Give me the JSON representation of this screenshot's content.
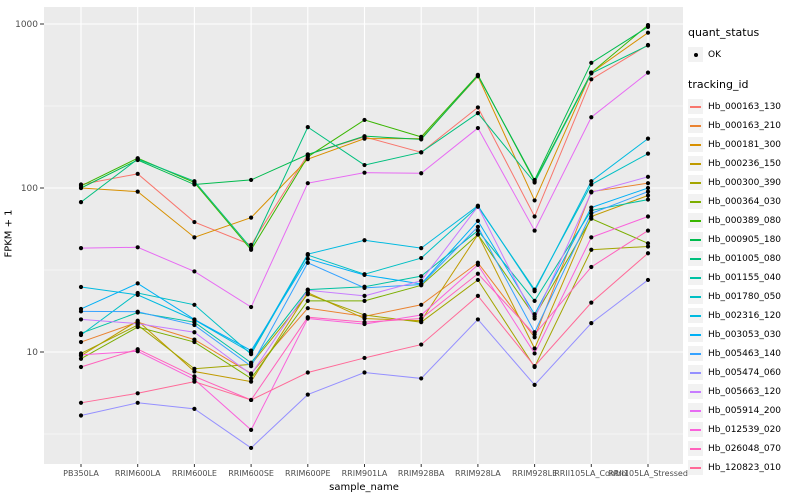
{
  "colors": {
    "panel_background": "#EBEBEB",
    "gridline": "#FFFFFF",
    "tick_mark": "#333333",
    "tick_label": "#4D4D4D",
    "point": "#000000",
    "legend_key_background": "#F2F2F2"
  },
  "legend": {
    "quant_status_title": "quant_status",
    "ok_label": "OK",
    "tracking_title": "tracking_id"
  },
  "chart_data": {
    "type": "line",
    "title": "",
    "xlabel": "sample_name",
    "ylabel": "FPKM + 1",
    "y_scale": "log10",
    "ylim": [
      2,
      1300
    ],
    "yticks": [
      10,
      100,
      1000
    ],
    "grid": true,
    "legend_position": "right",
    "point_marker": "black dot = quant_status OK",
    "x_categories": [
      "PB350LA",
      "RRIM600LA",
      "RRIM600LE",
      "RRIM600SE",
      "RRIM600PE",
      "RRIM901LA",
      "RRIM928BA",
      "RRIM928LA",
      "RRIM928LE",
      "RRII105LA_Control",
      "RRII105LA_Stressed"
    ],
    "series": [
      {
        "name": "Hb_000163_130",
        "color": "#F8766D",
        "values": [
          105,
          122,
          62,
          45,
          160,
          205,
          165,
          310,
          67,
          460,
          745
        ]
      },
      {
        "name": "Hb_000163_210",
        "color": "#EA8331",
        "values": [
          11.5,
          15.2,
          11.9,
          7.4,
          18.5,
          16.5,
          19.4,
          35,
          12.3,
          95,
          107
        ]
      },
      {
        "name": "Hb_000181_300",
        "color": "#D89000",
        "values": [
          100,
          95,
          50,
          66,
          150,
          200,
          200,
          480,
          84,
          505,
          885
        ]
      },
      {
        "name": "Hb_000236_150",
        "color": "#C09B00",
        "values": [
          9.5,
          15.5,
          7.6,
          6.6,
          23,
          16,
          15.5,
          52,
          10.5,
          67,
          90
        ]
      },
      {
        "name": "Hb_000300_390",
        "color": "#A3A500",
        "values": [
          9.8,
          14.6,
          7.9,
          8.4,
          22.5,
          16.8,
          15.2,
          27.5,
          8.1,
          42,
          44
        ]
      },
      {
        "name": "Hb_000364_030",
        "color": "#7CAE00",
        "values": [
          9.1,
          14.2,
          11.5,
          6.9,
          20.5,
          20.5,
          25.5,
          52,
          16.5,
          65,
          46
        ]
      },
      {
        "name": "Hb_000389_080",
        "color": "#39B600",
        "values": [
          103,
          152,
          108,
          42,
          155,
          260,
          205,
          490,
          110,
          505,
          985
        ]
      },
      {
        "name": "Hb_000905_180",
        "color": "#00BB4E",
        "values": [
          100,
          148,
          105,
          112,
          160,
          207,
          198,
          485,
          112,
          580,
          960
        ]
      },
      {
        "name": "Hb_001005_080",
        "color": "#00BF7D",
        "values": [
          82,
          150,
          110,
          43,
          235,
          138,
          165,
          286,
          108,
          500,
          740
        ]
      },
      {
        "name": "Hb_001155_040",
        "color": "#00C1A3",
        "values": [
          13,
          17.4,
          15.2,
          8.6,
          24,
          25,
          29,
          55,
          20.5,
          73,
          85
        ]
      },
      {
        "name": "Hb_001780_050",
        "color": "#00BFC4",
        "values": [
          12.7,
          22.9,
          19.4,
          9.7,
          39,
          29.8,
          37.4,
          77,
          24,
          105,
          162
        ]
      },
      {
        "name": "Hb_002316_120",
        "color": "#00BAE0",
        "values": [
          24.9,
          22.3,
          15.7,
          9.9,
          39.5,
          48,
          43,
          78,
          23.5,
          110,
          200
        ]
      },
      {
        "name": "Hb_003053_030",
        "color": "#00B0F6",
        "values": [
          18.3,
          26.2,
          15.8,
          10.2,
          37,
          29.5,
          26,
          63,
          17,
          76,
          100
        ]
      },
      {
        "name": "Hb_005463_140",
        "color": "#35A2FF",
        "values": [
          17.7,
          17.6,
          14.6,
          8.2,
          35,
          24.6,
          25.8,
          58,
          13.2,
          70,
          95
        ]
      },
      {
        "name": "Hb_005474_060",
        "color": "#9590FF",
        "values": [
          4.1,
          4.9,
          4.5,
          2.6,
          5.5,
          7.5,
          6.9,
          15.8,
          6.3,
          15,
          27.5
        ]
      },
      {
        "name": "Hb_005663_120",
        "color": "#C77CFF",
        "values": [
          15.8,
          14.9,
          13.2,
          7.3,
          23.8,
          22,
          27.2,
          77,
          16,
          94,
          117
        ]
      },
      {
        "name": "Hb_005914_200",
        "color": "#E76BF3",
        "values": [
          43,
          43.5,
          31,
          18.8,
          107,
          124,
          123,
          232,
          55,
          270,
          505
        ]
      },
      {
        "name": "Hb_012539_020",
        "color": "#FA62DB",
        "values": [
          9.6,
          10.1,
          6.8,
          3.35,
          16,
          14.8,
          16.8,
          34,
          9.8,
          50,
          67
        ]
      },
      {
        "name": "Hb_026048_070",
        "color": "#FF62BC",
        "values": [
          8.1,
          10.4,
          7.1,
          5.1,
          16.3,
          15.2,
          16,
          30,
          12.8,
          33,
          55
        ]
      },
      {
        "name": "Hb_120823_010",
        "color": "#FF6A98",
        "values": [
          4.9,
          5.6,
          6.6,
          5.1,
          7.5,
          9.2,
          11.1,
          22,
          8.2,
          20,
          40
        ]
      }
    ]
  }
}
